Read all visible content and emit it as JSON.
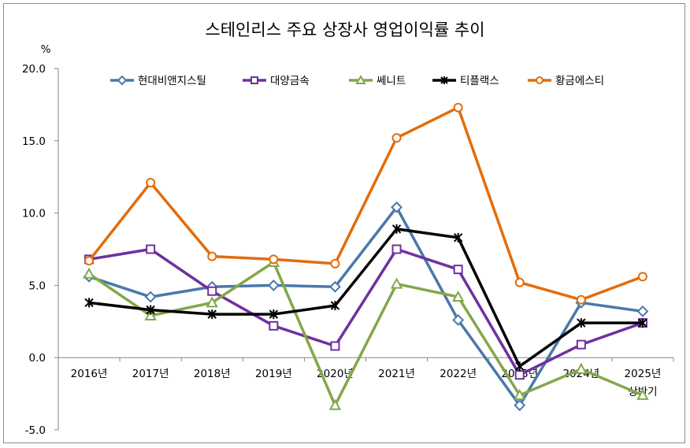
{
  "chart_data": {
    "type": "line",
    "title": "스테인리스 주요 상장사 영업이익률 추이",
    "ylabel": "%",
    "ylim": [
      -5.0,
      20.0
    ],
    "yticks": [
      "20.0",
      "15.0",
      "10.0",
      "5.0",
      "0.0",
      "-5.0"
    ],
    "ytick_values": [
      20,
      15,
      10,
      5,
      0,
      -5
    ],
    "categories": [
      "2016년",
      "2017년",
      "2018년",
      "2019년",
      "2020년",
      "2021년",
      "2022년",
      "2023년",
      "2024년",
      "2025년"
    ],
    "category_sublabels": [
      "",
      "",
      "",
      "",
      "",
      "",
      "",
      "",
      "",
      "상반기"
    ],
    "legend_position": "top",
    "series": [
      {
        "name": "현대비앤지스틸",
        "color": "#4a78ab",
        "marker": "diamond",
        "values": [
          5.6,
          4.2,
          4.9,
          5.0,
          4.9,
          10.4,
          2.6,
          -3.3,
          3.8,
          3.2
        ]
      },
      {
        "name": "대양금속",
        "color": "#7030a0",
        "marker": "square",
        "values": [
          6.8,
          7.5,
          4.6,
          2.2,
          0.8,
          7.5,
          6.1,
          -1.2,
          0.9,
          2.4
        ]
      },
      {
        "name": "쎄니트",
        "color": "#83a748",
        "marker": "triangle",
        "values": [
          5.8,
          2.9,
          3.8,
          6.6,
          -3.3,
          5.1,
          4.2,
          -2.6,
          -0.8,
          -2.6
        ]
      },
      {
        "name": "티플랙스",
        "color": "#000000",
        "marker": "star",
        "values": [
          3.8,
          3.3,
          3.0,
          3.0,
          3.6,
          8.9,
          8.3,
          -0.6,
          2.4,
          2.4
        ]
      },
      {
        "name": "황금에스티",
        "color": "#e36c0a",
        "marker": "circle",
        "values": [
          6.7,
          12.1,
          7.0,
          6.8,
          6.5,
          15.2,
          17.3,
          5.2,
          4.0,
          5.6
        ]
      }
    ]
  }
}
